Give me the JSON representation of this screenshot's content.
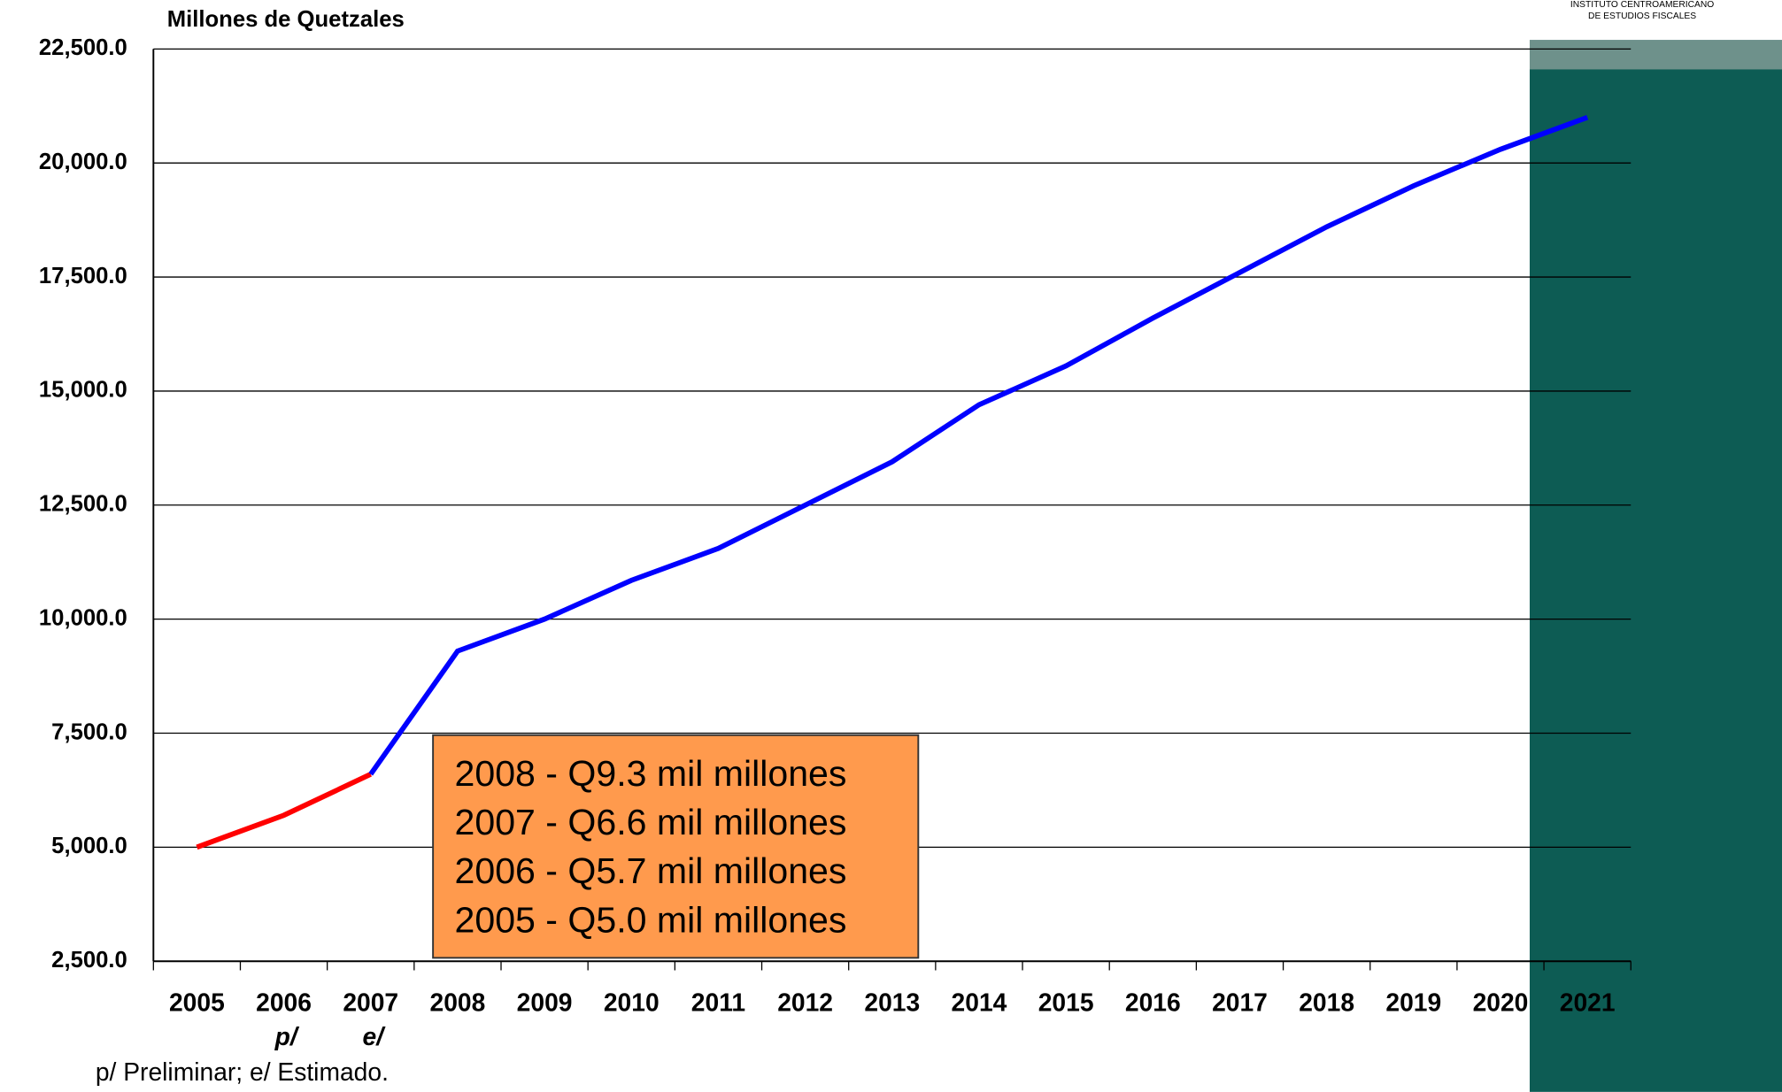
{
  "chart_data": {
    "type": "line",
    "y_axis_label": "Millones de Quetzales",
    "categories": [
      "2005",
      "2006",
      "2007",
      "2008",
      "2009",
      "2010",
      "2011",
      "2012",
      "2013",
      "2014",
      "2015",
      "2016",
      "2017",
      "2018",
      "2019",
      "2020",
      "2021"
    ],
    "category_notes": [
      null,
      "p/",
      "e/",
      null,
      null,
      null,
      null,
      null,
      null,
      null,
      null,
      null,
      null,
      null,
      null,
      null,
      null
    ],
    "series": [
      {
        "color": "#ff0000",
        "values": [
          5000,
          5700,
          6600,
          null,
          null,
          null,
          null,
          null,
          null,
          null,
          null,
          null,
          null,
          null,
          null,
          null,
          null
        ]
      },
      {
        "color": "#0000ff",
        "values": [
          null,
          null,
          6600,
          9300,
          10000,
          10850,
          11550,
          12500,
          13450,
          14700,
          15550,
          16600,
          17600,
          18600,
          19500,
          20300,
          21000
        ]
      }
    ],
    "ylim": [
      2500,
      22500
    ],
    "yticks": [
      {
        "value": 2500,
        "label": "2,500.0"
      },
      {
        "value": 5000,
        "label": "5,000.0"
      },
      {
        "value": 7500,
        "label": "7,500.0"
      },
      {
        "value": 10000,
        "label": "10,000.0"
      },
      {
        "value": 12500,
        "label": "12,500.0"
      },
      {
        "value": 15000,
        "label": "15,000.0"
      },
      {
        "value": 17500,
        "label": "17,500.0"
      },
      {
        "value": 20000,
        "label": "20,000.0"
      },
      {
        "value": 22500,
        "label": "22,500.0"
      }
    ],
    "grid": true,
    "annotation_lines": [
      "2008 - Q9.3 mil millones",
      "2007 - Q6.6 mil millones",
      "2006 - Q5.7 mil millones",
      "2005 - Q5.0 mil millones"
    ],
    "footnote": "p/ Preliminar;  e/ Estimado.",
    "logo": [
      "INSTITUTO CENTROAMERICANO",
      "DE ESTUDIOS FISCALES"
    ]
  }
}
